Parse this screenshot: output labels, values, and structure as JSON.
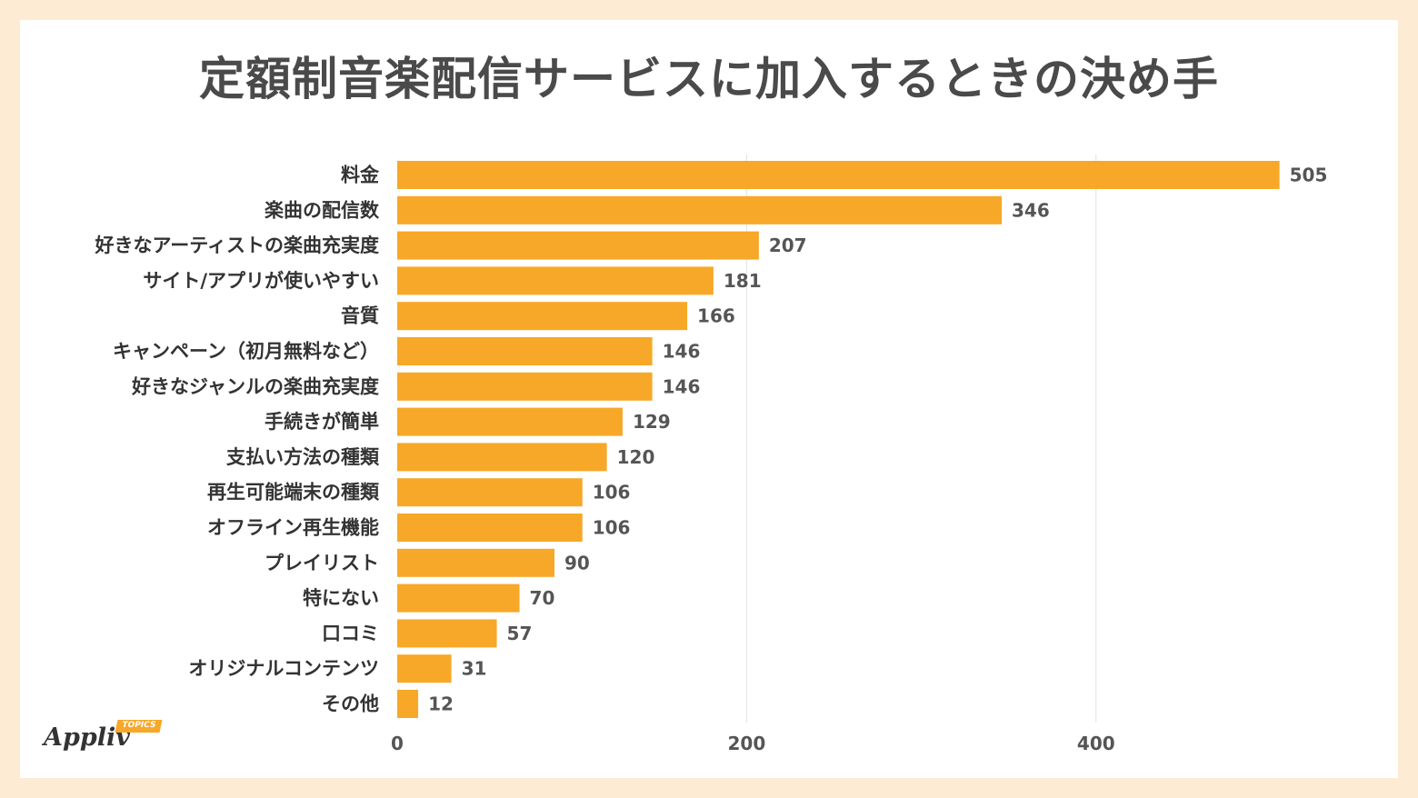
{
  "chart_data": {
    "type": "bar",
    "orientation": "horizontal",
    "title": "定額制音楽配信サービスに加入するときの決め手",
    "categories": [
      "料金",
      "楽曲の配信数",
      "好きなアーティストの楽曲充実度",
      "サイト/アプリが使いやすい",
      "音質",
      "キャンペーン（初月無料など）",
      "好きなジャンルの楽曲充実度",
      "手続きが簡単",
      "支払い方法の種類",
      "再生可能端末の種類",
      "オフライン再生機能",
      "プレイリスト",
      "特にない",
      "口コミ",
      "オリジナルコンテンツ",
      "その他"
    ],
    "values": [
      505,
      346,
      207,
      181,
      166,
      146,
      146,
      129,
      120,
      106,
      106,
      90,
      70,
      57,
      31,
      12
    ],
    "xticks": [
      0,
      200,
      400
    ],
    "xlim": [
      0,
      505
    ],
    "grid": true,
    "data_labels": true,
    "bar_color": "#f7a828"
  },
  "colors": {
    "background": "#fdebd3",
    "card": "#ffffff",
    "bar": "#f7a828",
    "title": "#4a4a4a",
    "label": "#333333",
    "value_label": "#555555",
    "gridline": "#e2e2e2"
  },
  "logo": {
    "word": "Appliv",
    "badge": "TOPICS"
  }
}
